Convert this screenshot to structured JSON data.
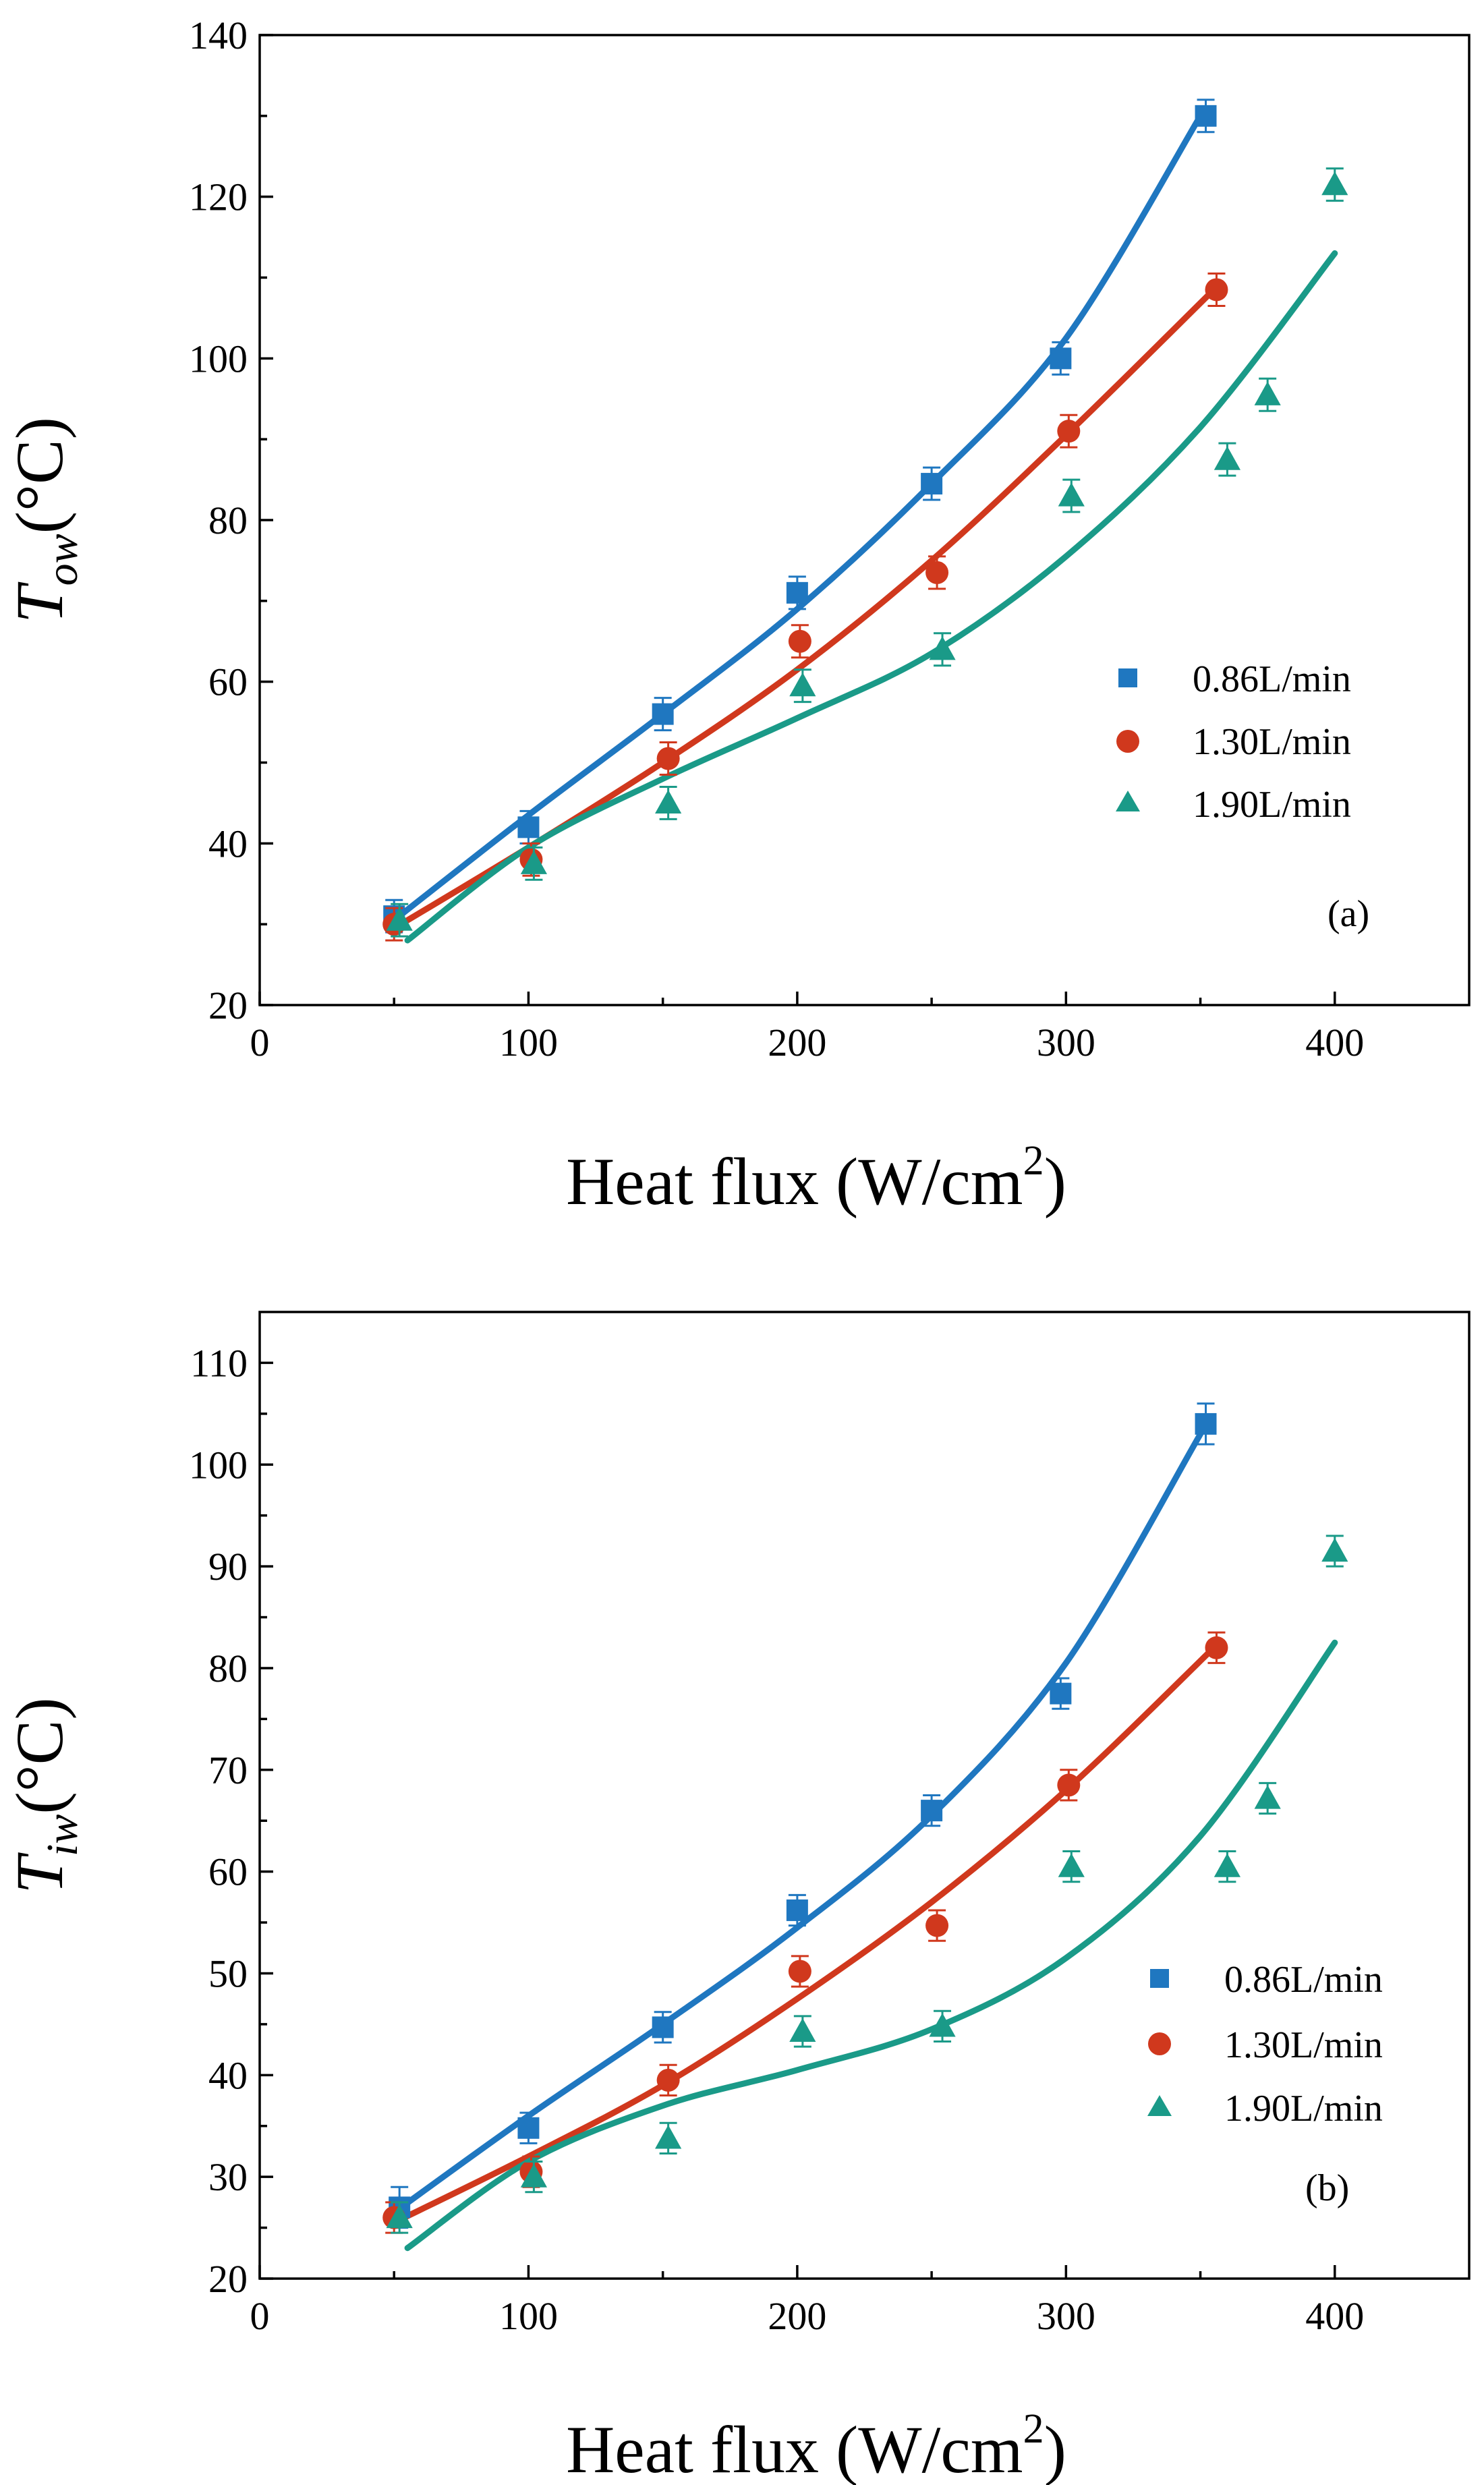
{
  "colors": {
    "series_0": "#1f77c0",
    "series_1": "#d0381d",
    "series_2": "#1a9a88"
  },
  "chart_data": [
    {
      "type": "scatter",
      "panel_label": "(a)",
      "title": "",
      "xlabel_main": "Heat flux (W/cm",
      "xlabel_sup": "2",
      "xlabel_close": ")",
      "ylabel_main": "T",
      "ylabel_sub": "ow",
      "ylabel_unit": "(°C)",
      "xlim": [
        0,
        450
      ],
      "ylim": [
        20,
        140
      ],
      "xticks": [
        0,
        100,
        200,
        300,
        400
      ],
      "yticks": [
        20,
        40,
        60,
        80,
        100,
        120,
        140
      ],
      "legend_position": "right-middle",
      "series": [
        {
          "name": "0.86L/min",
          "marker": "square",
          "x": [
            50,
            100,
            150,
            200,
            250,
            298,
            352
          ],
          "y": [
            31.0,
            42.0,
            56.0,
            71.0,
            84.5,
            100.0,
            130.0
          ],
          "err": [
            2,
            2,
            2,
            2,
            2,
            2,
            2
          ],
          "fit_x": [
            50,
            100,
            150,
            200,
            250,
            300,
            350
          ],
          "fit_y": [
            30.5,
            43.5,
            56.0,
            69.0,
            84.5,
            102.5,
            130.0
          ]
        },
        {
          "name": "1.30L/min",
          "marker": "circle",
          "x": [
            50,
            101,
            152,
            201,
            252,
            301,
            356
          ],
          "y": [
            30.0,
            38.0,
            50.5,
            65.0,
            73.5,
            91.0,
            108.5
          ],
          "err": [
            2,
            2,
            2,
            2,
            2,
            2,
            2
          ],
          "fit_x": [
            50,
            100,
            150,
            200,
            250,
            300,
            355
          ],
          "fit_y": [
            29.5,
            39.5,
            50.0,
            61.5,
            75.0,
            90.5,
            108.5
          ]
        },
        {
          "name": "1.90L/min",
          "marker": "triangle",
          "x": [
            52,
            102,
            152,
            202,
            254,
            302,
            360,
            375,
            400
          ],
          "y": [
            30.5,
            37.5,
            45.0,
            59.5,
            64.0,
            83.0,
            87.5,
            95.5,
            121.5
          ],
          "err": [
            2,
            2,
            2,
            2,
            2,
            2,
            2,
            2,
            2
          ],
          "fit_x": [
            55,
            100,
            150,
            200,
            250,
            300,
            350,
            400
          ],
          "fit_y": [
            28.0,
            39.5,
            48.0,
            55.5,
            63.5,
            75.5,
            91.5,
            113.0
          ]
        }
      ]
    },
    {
      "type": "scatter",
      "panel_label": "(b)",
      "title": "",
      "xlabel_main": "Heat flux (W/cm",
      "xlabel_sup": "2",
      "xlabel_close": ")",
      "ylabel_main": "T",
      "ylabel_sub": "iw",
      "ylabel_unit": "(°C)",
      "xlim": [
        0,
        450
      ],
      "ylim": [
        20,
        115
      ],
      "xticks": [
        0,
        100,
        200,
        300,
        400
      ],
      "yticks": [
        20,
        30,
        40,
        50,
        60,
        70,
        80,
        90,
        100,
        110
      ],
      "legend_position": "bottom-right",
      "series": [
        {
          "name": "0.86L/min",
          "marker": "square",
          "x": [
            52,
            100,
            150,
            200,
            250,
            298,
            352
          ],
          "y": [
            27.0,
            34.8,
            44.7,
            56.2,
            66.0,
            77.5,
            104.0
          ],
          "err": [
            2,
            1.5,
            1.5,
            1.5,
            1.5,
            1.5,
            2
          ],
          "fit_x": [
            50,
            100,
            150,
            200,
            250,
            300,
            350
          ],
          "fit_y": [
            26.5,
            36.0,
            45.0,
            54.5,
            65.5,
            80.5,
            103.0
          ]
        },
        {
          "name": "1.30L/min",
          "marker": "circle",
          "x": [
            50,
            101,
            152,
            201,
            252,
            301,
            356
          ],
          "y": [
            26.0,
            30.5,
            39.5,
            50.2,
            54.7,
            68.5,
            82.0
          ],
          "err": [
            1.5,
            1.5,
            1.5,
            1.5,
            1.5,
            1.5,
            1.5
          ],
          "fit_x": [
            50,
            100,
            150,
            200,
            250,
            300,
            355
          ],
          "fit_y": [
            25.5,
            32.0,
            39.0,
            47.5,
            57.0,
            68.0,
            82.0
          ]
        },
        {
          "name": "1.90L/min",
          "marker": "triangle",
          "x": [
            52,
            102,
            152,
            202,
            254,
            302,
            360,
            375,
            400
          ],
          "y": [
            26.0,
            30.0,
            33.8,
            44.3,
            44.8,
            60.5,
            60.5,
            67.2,
            91.5
          ],
          "err": [
            1.5,
            1.5,
            1.5,
            1.5,
            1.5,
            1.5,
            1.5,
            1.5,
            1.5
          ],
          "fit_x": [
            55,
            100,
            150,
            200,
            250,
            300,
            350,
            400
          ],
          "fit_y": [
            23.0,
            31.5,
            37.0,
            40.5,
            44.5,
            51.5,
            63.5,
            82.5
          ]
        }
      ]
    }
  ]
}
